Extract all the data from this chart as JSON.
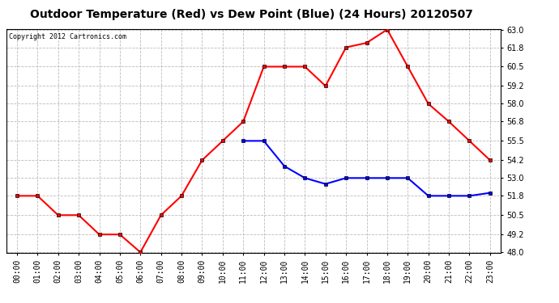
{
  "title": "Outdoor Temperature (Red) vs Dew Point (Blue) (24 Hours) 20120507",
  "copyright_text": "Copyright 2012 Cartronics.com",
  "hours": [
    0,
    1,
    2,
    3,
    4,
    5,
    6,
    7,
    8,
    9,
    10,
    11,
    12,
    13,
    14,
    15,
    16,
    17,
    18,
    19,
    20,
    21,
    22,
    23
  ],
  "temp_red": [
    51.8,
    51.8,
    50.5,
    50.5,
    49.2,
    49.2,
    48.0,
    50.5,
    51.8,
    54.2,
    55.5,
    56.8,
    60.5,
    60.5,
    60.5,
    59.2,
    61.8,
    62.1,
    63.0,
    60.5,
    58.0,
    56.8,
    55.5,
    54.2
  ],
  "dew_blue": [
    null,
    null,
    null,
    null,
    null,
    null,
    null,
    null,
    null,
    null,
    null,
    55.5,
    55.5,
    53.8,
    53.0,
    52.6,
    53.0,
    53.0,
    53.0,
    53.0,
    51.8,
    51.8,
    51.8,
    52.0
  ],
  "ylim_min": 48.0,
  "ylim_max": 63.0,
  "yticks": [
    48.0,
    49.2,
    50.5,
    51.8,
    53.0,
    54.2,
    55.5,
    56.8,
    58.0,
    59.2,
    60.5,
    61.8,
    63.0
  ],
  "red_color": "#ff0000",
  "blue_color": "#0000ff",
  "bg_color": "#ffffff",
  "grid_color": "#bbbbbb",
  "title_fontsize": 10,
  "tick_fontsize": 7,
  "marker": "s",
  "marker_size": 3,
  "linewidth": 1.5
}
